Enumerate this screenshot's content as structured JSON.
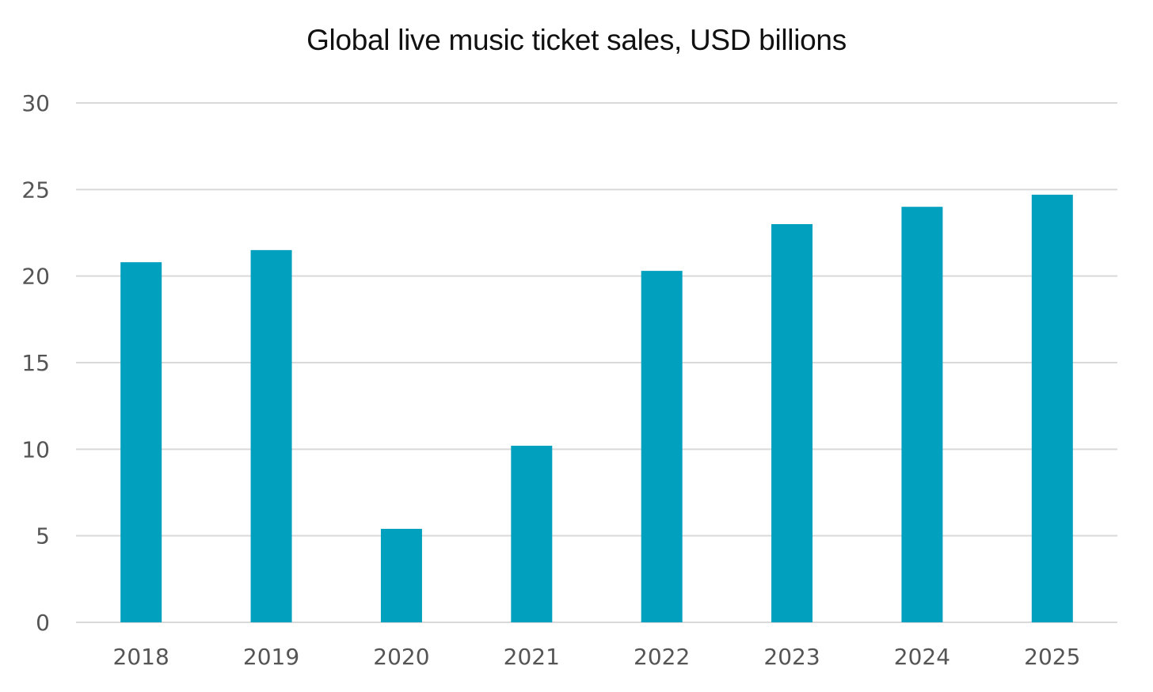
{
  "chart_data": {
    "type": "bar",
    "title": "Global live music ticket sales, USD billions",
    "xlabel": "",
    "ylabel": "",
    "categories": [
      "2018",
      "2019",
      "2020",
      "2021",
      "2022",
      "2023",
      "2024",
      "2025"
    ],
    "values": [
      20.8,
      21.5,
      5.4,
      10.2,
      20.3,
      23.0,
      24.0,
      24.7
    ],
    "ylim": [
      0,
      30
    ],
    "yticks": [
      0,
      5,
      10,
      15,
      20,
      25,
      30
    ],
    "grid": true,
    "legend": "none",
    "bar_color": "#00A0BE",
    "grid_color": "#D9D9D9"
  }
}
